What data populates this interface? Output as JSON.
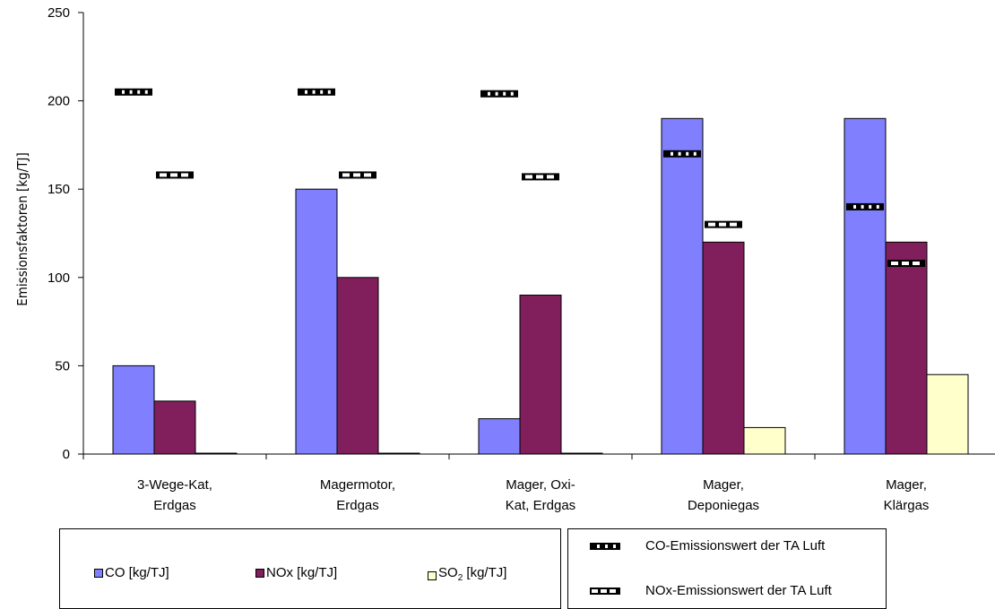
{
  "chart_data": {
    "type": "bar",
    "ylabel": "Emissionsfaktoren [kg/TJ]",
    "ylim": [
      0,
      250
    ],
    "yticks": [
      0,
      50,
      100,
      150,
      200,
      250
    ],
    "categories": [
      [
        "3-Wege-Kat,",
        "Erdgas"
      ],
      [
        "Magermotor,",
        "Erdgas"
      ],
      [
        "Mager, Oxi-",
        "Kat, Erdgas"
      ],
      [
        "Mager,",
        "Deponiegas"
      ],
      [
        "Mager,",
        "Klärgas"
      ]
    ],
    "series": [
      {
        "name": "CO [kg/TJ]",
        "color": "#8080ff",
        "values": [
          50,
          150,
          20,
          190,
          190
        ]
      },
      {
        "name": "NOx  [kg/TJ]",
        "color": "#801f5c",
        "values": [
          30,
          100,
          90,
          120,
          120
        ]
      },
      {
        "name": "SO2 [kg/TJ]",
        "color": "#ffffcc",
        "values": [
          0.5,
          0.5,
          0.5,
          15,
          45
        ]
      }
    ],
    "limit_series": [
      {
        "name": "CO-Emissionswert der TA Luft",
        "style": "black-white-dashes",
        "values": [
          205,
          205,
          204,
          170,
          140
        ]
      },
      {
        "name": "NOx-Emissionswert der TA Luft",
        "style": "white-dashes-on-black",
        "values": [
          158,
          158,
          157,
          130,
          108
        ]
      }
    ],
    "legend": {
      "series_labels": {
        "co": "CO [kg/TJ]",
        "nox": "NOx  [kg/TJ]",
        "so2_main": "SO",
        "so2_sub": "2",
        "so2_tail": " [kg/TJ]"
      },
      "limit_labels": {
        "co": "CO-Emissionswert der TA Luft",
        "nox": "NOx-Emissionswert der TA Luft"
      },
      "placement": "bottom"
    }
  }
}
